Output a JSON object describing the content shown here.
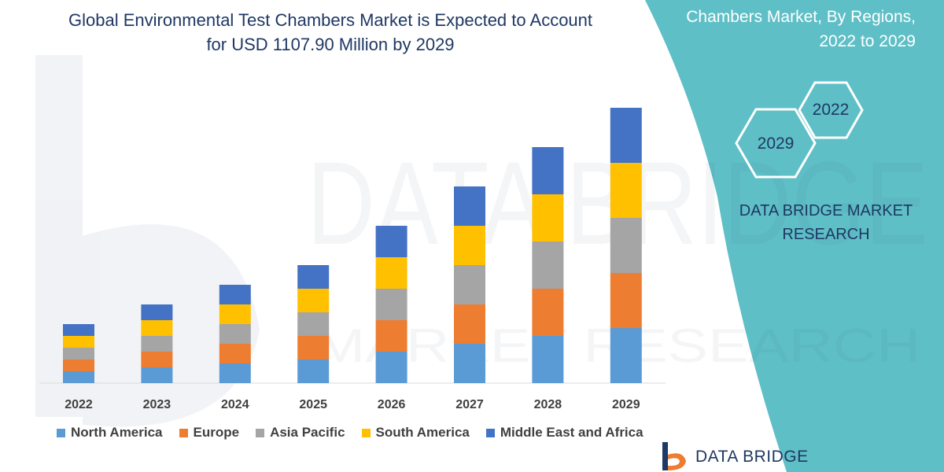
{
  "header": {
    "title_line1": "Global Environmental Test Chambers Market is Expected to Account",
    "title_line2": "for USD 1107.90 Million by 2029",
    "side_title_line1": "Chambers Market, By Regions,",
    "side_title_line2": "2022 to 2029"
  },
  "hexagons": {
    "back": "2022",
    "front": "2029"
  },
  "brand": {
    "line1": "DATA BRIDGE MARKET",
    "line2": "RESEARCH"
  },
  "footer": {
    "logo_text": "DATA BRIDGE"
  },
  "watermark": {
    "line1": "DATA BRIDGE",
    "line2": "MARKET RESEARCH"
  },
  "colors": {
    "teal": "#5fbfc6",
    "north_america": "#5b9bd5",
    "europe": "#ed7d31",
    "asia_pacific": "#a5a5a5",
    "south_america": "#ffc000",
    "middle_east_africa": "#4472c4",
    "title": "#1f3864"
  },
  "chart_data": {
    "type": "bar",
    "stacked": true,
    "categories": [
      "2022",
      "2023",
      "2024",
      "2025",
      "2026",
      "2027",
      "2028",
      "2029"
    ],
    "series": [
      {
        "name": "North America",
        "values": [
          15,
          20,
          25,
          30,
          40,
          50,
          60,
          70
        ]
      },
      {
        "name": "Europe",
        "values": [
          15,
          20,
          25,
          30,
          40,
          50,
          60,
          70
        ]
      },
      {
        "name": "Asia Pacific",
        "values": [
          15,
          20,
          25,
          30,
          40,
          50,
          60,
          70
        ]
      },
      {
        "name": "South America",
        "values": [
          15,
          20,
          25,
          30,
          40,
          50,
          60,
          70
        ]
      },
      {
        "name": "Middle East and Africa",
        "values": [
          15,
          20,
          25,
          30,
          40,
          50,
          60,
          70
        ]
      }
    ],
    "ylim": [
      0,
      350
    ],
    "grid": false,
    "legend_position": "bottom"
  }
}
